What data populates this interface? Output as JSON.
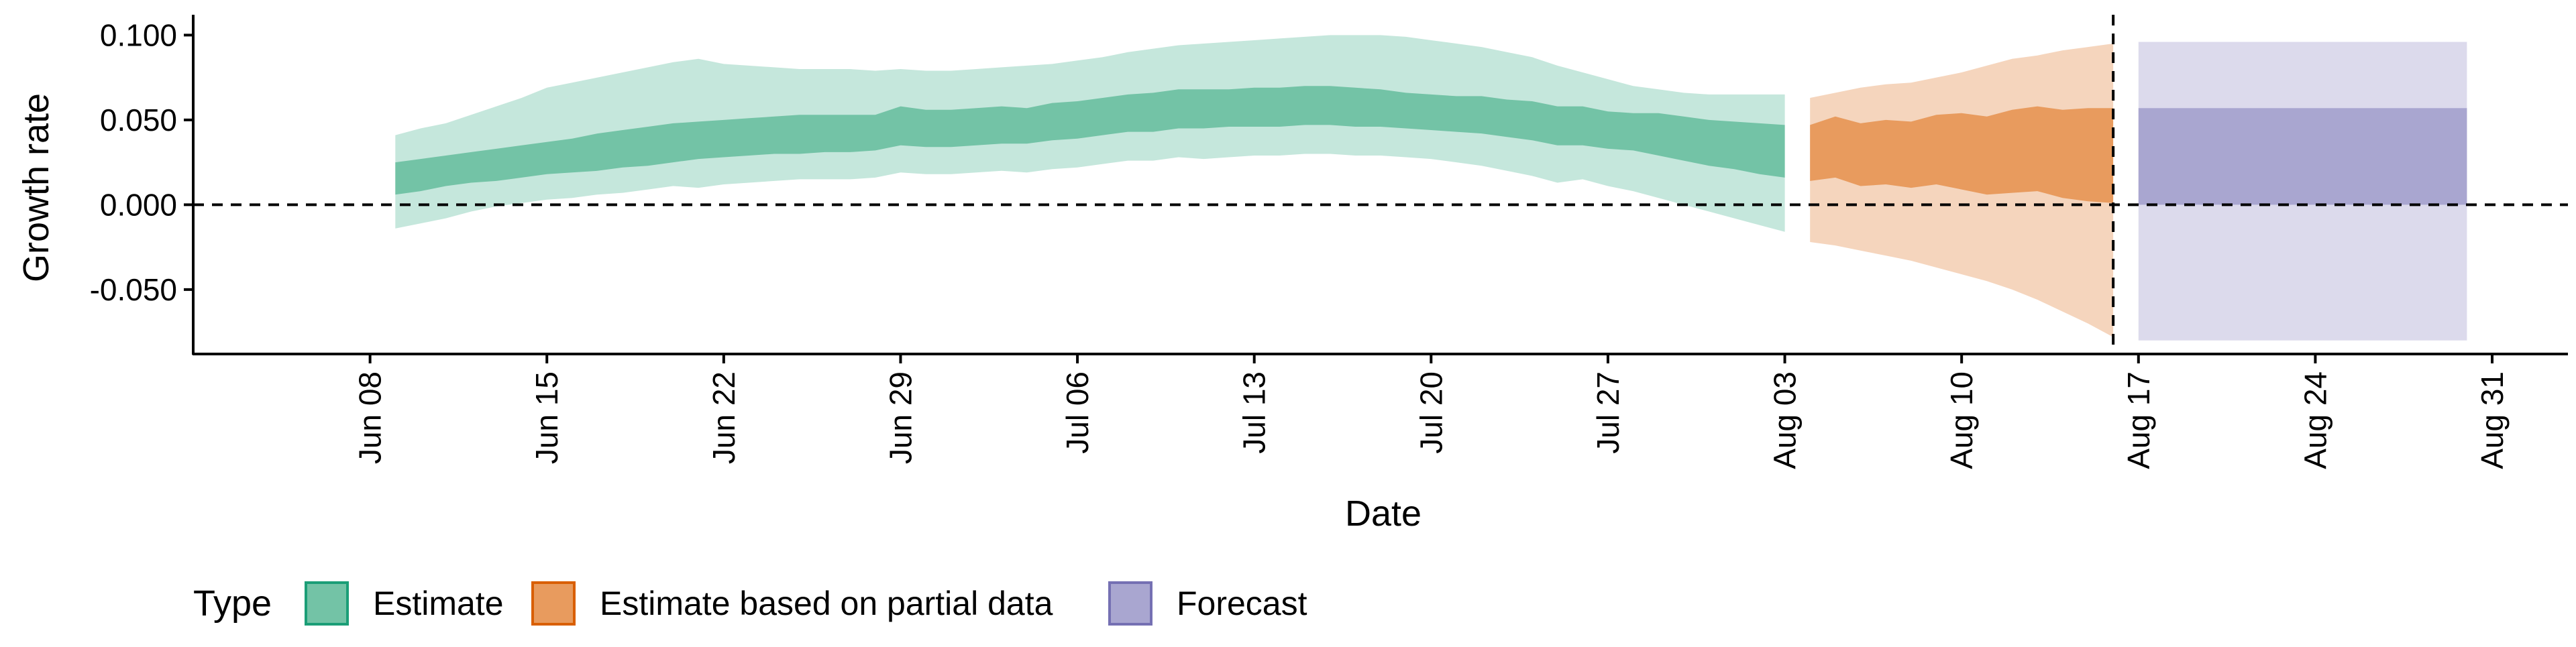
{
  "chart_data": {
    "type": "area",
    "xlabel": "Date",
    "ylabel": "Growth rate",
    "x_axis": {
      "type": "date",
      "range": [
        "2020-06-01",
        "2020-09-03"
      ],
      "ticks": [
        "2020-06-08",
        "2020-06-15",
        "2020-06-22",
        "2020-06-29",
        "2020-07-06",
        "2020-07-13",
        "2020-07-20",
        "2020-07-27",
        "2020-08-03",
        "2020-08-10",
        "2020-08-17",
        "2020-08-24",
        "2020-08-31"
      ],
      "tick_labels": [
        "Jun 08",
        "Jun 15",
        "Jun 22",
        "Jun 29",
        "Jul 06",
        "Jul 13",
        "Jul 20",
        "Jul 27",
        "Aug 03",
        "Aug 10",
        "Aug 17",
        "Aug 24",
        "Aug 31"
      ]
    },
    "y_axis": {
      "range": [
        -0.088,
        0.112
      ],
      "ticks": [
        -0.05,
        0.0,
        0.05,
        0.1
      ],
      "tick_labels": [
        "-0.050",
        "0.000",
        "0.050",
        "0.100"
      ]
    },
    "reference_lines": {
      "horizontal_y": 0.0,
      "vertical_date": "2020-08-16",
      "style": "dashed"
    },
    "grid": false,
    "legend": {
      "title": "Type",
      "position": "bottom-left",
      "entries": [
        {
          "label": "Estimate",
          "fill": "#73c3a6",
          "stroke": "#1b9e77"
        },
        {
          "label": "Estimate based on partial data",
          "fill": "#e89b5e",
          "stroke": "#d95f02"
        },
        {
          "label": "Forecast",
          "fill": "#a9a6d0",
          "stroke": "#7570b3"
        }
      ]
    },
    "series": [
      {
        "name": "Estimate",
        "outer_color": "#c5e7dc",
        "inner_color": "#73c3a6",
        "x": [
          "2020-06-09",
          "2020-06-10",
          "2020-06-11",
          "2020-06-12",
          "2020-06-13",
          "2020-06-14",
          "2020-06-15",
          "2020-06-16",
          "2020-06-17",
          "2020-06-18",
          "2020-06-19",
          "2020-06-20",
          "2020-06-21",
          "2020-06-22",
          "2020-06-23",
          "2020-06-24",
          "2020-06-25",
          "2020-06-26",
          "2020-06-27",
          "2020-06-28",
          "2020-06-29",
          "2020-06-30",
          "2020-07-01",
          "2020-07-02",
          "2020-07-03",
          "2020-07-04",
          "2020-07-05",
          "2020-07-06",
          "2020-07-07",
          "2020-07-08",
          "2020-07-09",
          "2020-07-10",
          "2020-07-11",
          "2020-07-12",
          "2020-07-13",
          "2020-07-14",
          "2020-07-15",
          "2020-07-16",
          "2020-07-17",
          "2020-07-18",
          "2020-07-19",
          "2020-07-20",
          "2020-07-21",
          "2020-07-22",
          "2020-07-23",
          "2020-07-24",
          "2020-07-25",
          "2020-07-26",
          "2020-07-27",
          "2020-07-28",
          "2020-07-29",
          "2020-07-30",
          "2020-07-31",
          "2020-08-01",
          "2020-08-02",
          "2020-08-03"
        ],
        "lower_90": [
          -0.014,
          -0.011,
          -0.008,
          -0.004,
          -0.001,
          0.001,
          0.003,
          0.004,
          0.006,
          0.007,
          0.009,
          0.011,
          0.01,
          0.012,
          0.013,
          0.014,
          0.015,
          0.015,
          0.015,
          0.016,
          0.019,
          0.018,
          0.018,
          0.019,
          0.02,
          0.019,
          0.021,
          0.022,
          0.024,
          0.026,
          0.026,
          0.028,
          0.027,
          0.028,
          0.029,
          0.029,
          0.03,
          0.03,
          0.029,
          0.029,
          0.028,
          0.027,
          0.025,
          0.023,
          0.02,
          0.017,
          0.013,
          0.015,
          0.011,
          0.008,
          0.004,
          0.0,
          -0.004,
          -0.008,
          -0.012,
          -0.016
        ],
        "lower_50": [
          0.006,
          0.008,
          0.011,
          0.013,
          0.014,
          0.016,
          0.018,
          0.019,
          0.02,
          0.022,
          0.023,
          0.025,
          0.027,
          0.028,
          0.029,
          0.03,
          0.03,
          0.031,
          0.031,
          0.032,
          0.035,
          0.034,
          0.034,
          0.035,
          0.036,
          0.036,
          0.038,
          0.039,
          0.041,
          0.043,
          0.043,
          0.045,
          0.045,
          0.046,
          0.046,
          0.046,
          0.047,
          0.047,
          0.046,
          0.046,
          0.045,
          0.044,
          0.043,
          0.042,
          0.04,
          0.038,
          0.035,
          0.035,
          0.033,
          0.032,
          0.029,
          0.026,
          0.023,
          0.021,
          0.018,
          0.016
        ],
        "upper_50": [
          0.025,
          0.027,
          0.029,
          0.031,
          0.033,
          0.035,
          0.037,
          0.039,
          0.042,
          0.044,
          0.046,
          0.048,
          0.049,
          0.05,
          0.051,
          0.052,
          0.053,
          0.053,
          0.053,
          0.053,
          0.058,
          0.056,
          0.056,
          0.057,
          0.058,
          0.057,
          0.06,
          0.061,
          0.063,
          0.065,
          0.066,
          0.068,
          0.068,
          0.068,
          0.069,
          0.069,
          0.07,
          0.07,
          0.069,
          0.068,
          0.066,
          0.065,
          0.064,
          0.064,
          0.062,
          0.061,
          0.058,
          0.058,
          0.055,
          0.054,
          0.054,
          0.052,
          0.05,
          0.049,
          0.048,
          0.047
        ],
        "upper_90": [
          0.041,
          0.045,
          0.048,
          0.053,
          0.058,
          0.063,
          0.069,
          0.072,
          0.075,
          0.078,
          0.081,
          0.084,
          0.086,
          0.083,
          0.082,
          0.081,
          0.08,
          0.08,
          0.08,
          0.079,
          0.08,
          0.079,
          0.079,
          0.08,
          0.081,
          0.082,
          0.083,
          0.085,
          0.087,
          0.09,
          0.092,
          0.094,
          0.095,
          0.096,
          0.097,
          0.098,
          0.099,
          0.1,
          0.1,
          0.1,
          0.099,
          0.097,
          0.095,
          0.093,
          0.09,
          0.087,
          0.082,
          0.078,
          0.074,
          0.07,
          0.068,
          0.066,
          0.065,
          0.065,
          0.065,
          0.065
        ]
      },
      {
        "name": "Estimate based on partial data",
        "outer_color": "#f5d5bd",
        "inner_color": "#e89b5e",
        "x": [
          "2020-08-04",
          "2020-08-05",
          "2020-08-06",
          "2020-08-07",
          "2020-08-08",
          "2020-08-09",
          "2020-08-10",
          "2020-08-11",
          "2020-08-12",
          "2020-08-13",
          "2020-08-14",
          "2020-08-15",
          "2020-08-16"
        ],
        "lower_90": [
          -0.022,
          -0.024,
          -0.027,
          -0.03,
          -0.033,
          -0.037,
          -0.041,
          -0.045,
          -0.05,
          -0.056,
          -0.063,
          -0.07,
          -0.078
        ],
        "lower_50": [
          0.014,
          0.016,
          0.011,
          0.012,
          0.01,
          0.012,
          0.009,
          0.006,
          0.007,
          0.008,
          0.004,
          0.002,
          0.001
        ],
        "upper_50": [
          0.047,
          0.052,
          0.048,
          0.05,
          0.049,
          0.053,
          0.054,
          0.052,
          0.056,
          0.058,
          0.056,
          0.057,
          0.057
        ],
        "upper_90": [
          0.063,
          0.066,
          0.069,
          0.071,
          0.072,
          0.075,
          0.078,
          0.082,
          0.086,
          0.088,
          0.091,
          0.093,
          0.095
        ]
      },
      {
        "name": "Forecast",
        "outer_color": "#dcdaec",
        "inner_color": "#a9a6d0",
        "x": [
          "2020-08-17",
          "2020-08-30"
        ],
        "lower_90": [
          -0.08,
          -0.08
        ],
        "lower_50": [
          0.0,
          0.0
        ],
        "upper_50": [
          0.057,
          0.057
        ],
        "upper_90": [
          0.096,
          0.096
        ]
      }
    ]
  }
}
